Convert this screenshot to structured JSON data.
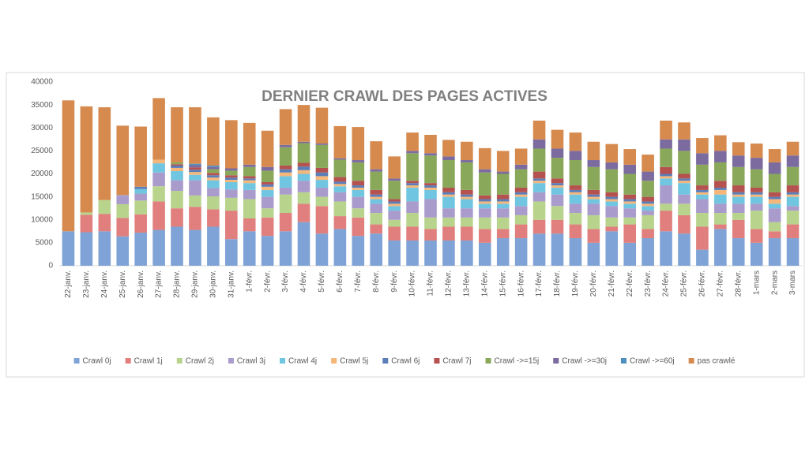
{
  "chart_data": {
    "type": "stacked_bar",
    "title": "DERNIER CRAWL DES PAGES ACTIVES",
    "categories": [
      "22-janv.",
      "23-janv.",
      "24-janv.",
      "25-janv.",
      "26-janv.",
      "27-janv.",
      "28-janv.",
      "29-janv.",
      "30-janv.",
      "31-janv.",
      "1-févr.",
      "2-févr.",
      "3-févr.",
      "4-févr.",
      "5-févr.",
      "6-févr.",
      "7-févr.",
      "8-févr.",
      "9-févr.",
      "10-févr.",
      "11-févr.",
      "12-févr.",
      "13-févr.",
      "14-févr.",
      "15-févr.",
      "16-févr.",
      "17-févr.",
      "18-févr.",
      "19-févr.",
      "20-févr.",
      "21-févr.",
      "22-févr.",
      "23-févr.",
      "24-févr.",
      "25-févr.",
      "26-févr.",
      "27-févr.",
      "28-févr.",
      "1-mars",
      "2-mars",
      "3-mars"
    ],
    "series": [
      {
        "name": "Crawl 0j",
        "color": "#7fa3d6",
        "values": [
          7500,
          7300,
          7500,
          6400,
          7200,
          7800,
          8500,
          7800,
          8500,
          5800,
          7500,
          6500,
          7500,
          9500,
          7000,
          8000,
          6500,
          7000,
          5500,
          5500,
          5500,
          5500,
          5500,
          5000,
          6000,
          6000,
          7000,
          7000,
          6000,
          5000,
          7500,
          5000,
          6000,
          7500,
          7000,
          3500,
          8000,
          6000,
          5000,
          6000,
          6000
        ]
      },
      {
        "name": "Crawl 1j",
        "color": "#e07f7d",
        "values": [
          0,
          3800,
          3800,
          4000,
          4000,
          6200,
          4000,
          5000,
          3800,
          6200,
          2800,
          4000,
          4000,
          4000,
          6000,
          2800,
          4000,
          2000,
          3000,
          3000,
          2500,
          3000,
          3000,
          3000,
          2000,
          3000,
          3000,
          3000,
          3000,
          3000,
          1000,
          4000,
          2000,
          4500,
          4000,
          5000,
          1000,
          4000,
          3000,
          1500,
          3000
        ]
      },
      {
        "name": "Crawl 2j",
        "color": "#b8d48c",
        "values": [
          0,
          500,
          3000,
          3000,
          3000,
          3300,
          3800,
          2500,
          2800,
          2800,
          4200,
          2000,
          4000,
          2500,
          2000,
          3200,
          2000,
          2500,
          1500,
          3000,
          2500,
          2000,
          2000,
          2500,
          2500,
          2000,
          4000,
          3000,
          2500,
          3000,
          2000,
          1500,
          3000,
          1500,
          2500,
          3000,
          2500,
          1500,
          4000,
          2000,
          3000
        ]
      },
      {
        "name": "Crawl 3j",
        "color": "#a99bcc",
        "values": [
          0,
          0,
          0,
          2000,
          1500,
          3000,
          2300,
          3300,
          1800,
          1800,
          2000,
          2500,
          1500,
          2500,
          2000,
          2000,
          2500,
          2000,
          2000,
          2500,
          4000,
          2000,
          2000,
          2000,
          2000,
          2000,
          2000,
          2500,
          2000,
          2500,
          2500,
          2000,
          1000,
          4000,
          2000,
          3000,
          2000,
          2000,
          1500,
          3000,
          1000
        ]
      },
      {
        "name": "Crawl 4j",
        "color": "#70c6e0",
        "values": [
          0,
          0,
          0,
          0,
          1000,
          2000,
          2000,
          1200,
          1700,
          1600,
          1500,
          1500,
          2500,
          1500,
          1700,
          1300,
          1500,
          1000,
          1000,
          3000,
          2000,
          2500,
          2000,
          1000,
          1000,
          2000,
          2000,
          1500,
          2000,
          1000,
          1000,
          1000,
          1000,
          1500,
          2500,
          1000,
          2000,
          1500,
          1500,
          1000,
          2000
        ]
      },
      {
        "name": "Crawl 5j",
        "color": "#f5b67a",
        "values": [
          0,
          0,
          0,
          0,
          0,
          800,
          700,
          600,
          600,
          500,
          600,
          700,
          800,
          800,
          800,
          500,
          500,
          500,
          500,
          500,
          500,
          500,
          500,
          500,
          500,
          500,
          500,
          500,
          500,
          500,
          500,
          500,
          500,
          500,
          500,
          500,
          1000,
          500,
          500,
          1000,
          500
        ]
      },
      {
        "name": "Crawl 6j",
        "color": "#5b7db8",
        "values": [
          0,
          0,
          0,
          0,
          500,
          0,
          500,
          500,
          500,
          500,
          400,
          500,
          700,
          800,
          800,
          500,
          500,
          500,
          500,
          500,
          500,
          500,
          500,
          500,
          500,
          500,
          500,
          500,
          500,
          500,
          500,
          500,
          500,
          500,
          500,
          500,
          500,
          500,
          500,
          500,
          500
        ]
      },
      {
        "name": "Crawl 7j",
        "color": "#b5514f",
        "values": [
          0,
          0,
          0,
          0,
          0,
          0,
          300,
          500,
          500,
          500,
          500,
          500,
          800,
          800,
          1000,
          1000,
          1000,
          1000,
          500,
          500,
          500,
          1000,
          1000,
          800,
          1000,
          1000,
          1500,
          1000,
          1000,
          1000,
          1000,
          1000,
          1000,
          1500,
          1000,
          1000,
          1500,
          1500,
          1000,
          1000,
          1500
        ]
      },
      {
        "name": "Crawl ->=15j",
        "color": "#8aa85a",
        "values": [
          0,
          0,
          0,
          0,
          0,
          0,
          400,
          0,
          800,
          1000,
          2000,
          2500,
          4000,
          4300,
          5000,
          3800,
          4000,
          4000,
          4000,
          6000,
          6000,
          6000,
          6000,
          5000,
          4500,
          4000,
          5000,
          4500,
          5500,
          5000,
          5000,
          4500,
          3500,
          4000,
          5000,
          4500,
          4000,
          4000,
          4000,
          4000,
          4000
        ]
      },
      {
        "name": "Crawl ->=30j",
        "color": "#7b6b9e",
        "values": [
          0,
          0,
          0,
          0,
          0,
          0,
          0,
          500,
          500,
          500,
          500,
          800,
          500,
          300,
          300,
          300,
          500,
          500,
          500,
          500,
          500,
          800,
          500,
          700,
          500,
          1000,
          2000,
          2000,
          2000,
          1500,
          1500,
          2000,
          2000,
          2000,
          2500,
          2500,
          2500,
          2500,
          2500,
          2500,
          2500
        ]
      },
      {
        "name": "Crawl ->=60j",
        "color": "#4f8fbd",
        "values": [
          0,
          0,
          0,
          0,
          0,
          0,
          0,
          300,
          300,
          0,
          0,
          0,
          0,
          0,
          0,
          0,
          0,
          0,
          0,
          0,
          0,
          0,
          0,
          0,
          0,
          0,
          0,
          0,
          0,
          0,
          0,
          0,
          0,
          0,
          0,
          0,
          0,
          0,
          0,
          0,
          0
        ]
      },
      {
        "name": "pas crawlé",
        "color": "#d68a4e",
        "values": [
          28500,
          23100,
          20200,
          15100,
          13100,
          13400,
          12000,
          12300,
          10500,
          10500,
          9100,
          7900,
          7800,
          8000,
          7800,
          7000,
          7200,
          6100,
          4800,
          4000,
          4000,
          3600,
          4000,
          4600,
          4500,
          3500,
          4100,
          4100,
          4000,
          4000,
          4000,
          3400,
          3700,
          4100,
          3700,
          3300,
          3400,
          2900,
          3100,
          2900,
          3000
        ]
      }
    ],
    "ylim": [
      0,
      40000
    ],
    "yticks": [
      0,
      5000,
      10000,
      15000,
      20000,
      25000,
      30000,
      35000,
      40000
    ],
    "grid": false,
    "legend": "bottom"
  }
}
